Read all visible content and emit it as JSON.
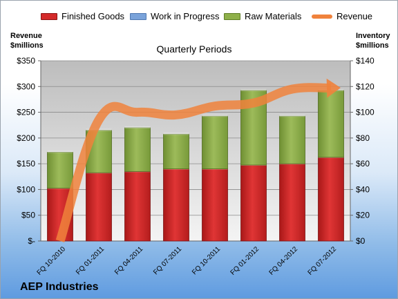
{
  "company": "AEP Industries",
  "chart_data": {
    "type": "bar",
    "title": "Quarterly Periods",
    "categories": [
      "FQ 10-2010",
      "FQ 01-2011",
      "FQ 04-2011",
      "FQ 07-2011",
      "FQ 10-2011",
      "FQ 01-2012",
      "FQ 04-2012",
      "FQ 07-2012"
    ],
    "stacked": true,
    "left_axis": {
      "label_line1": "Revenue",
      "label_line2": "$millions",
      "ylim": [
        0,
        350
      ],
      "ticks": [
        "$-",
        "$50",
        "$100",
        "$150",
        "$200",
        "$250",
        "$300",
        "$350"
      ]
    },
    "right_axis": {
      "label_line1": "Inventory",
      "label_line2": "$millions",
      "ylim": [
        0,
        140
      ],
      "ticks": [
        "$0",
        "$20",
        "$40",
        "$60",
        "$80",
        "$100",
        "$120",
        "$140"
      ]
    },
    "series": [
      {
        "name": "Finished Goods",
        "axis": "right",
        "color": "#d42a2a",
        "values": [
          41,
          53,
          54,
          56,
          56,
          59,
          60,
          65
        ]
      },
      {
        "name": "Work in Progress",
        "axis": "right",
        "color": "#7aa3da",
        "values": [
          0,
          0,
          0,
          0,
          0,
          0,
          0,
          0
        ]
      },
      {
        "name": "Raw Materials",
        "axis": "right",
        "color": "#8fb04a",
        "values": [
          28,
          33,
          34,
          27,
          41,
          58,
          37,
          52
        ]
      },
      {
        "name": "Revenue",
        "type": "line",
        "axis": "left",
        "color": "#f0823c",
        "values": [
          0,
          235,
          250,
          245,
          262,
          268,
          295,
          297
        ]
      }
    ],
    "grid": true,
    "legend_position": "top"
  }
}
